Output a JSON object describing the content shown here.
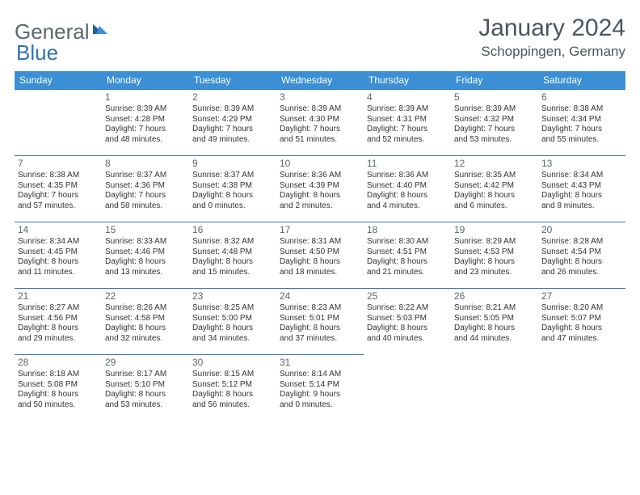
{
  "header": {
    "logo_word1": "General",
    "logo_word2": "Blue",
    "month_title": "January 2024",
    "location": "Schoppingen, Germany"
  },
  "colors": {
    "header_bg": "#3b8fd4",
    "row_border": "#2f73b5",
    "text": "#333333",
    "muted": "#5a6770"
  },
  "day_headers": [
    "Sunday",
    "Monday",
    "Tuesday",
    "Wednesday",
    "Thursday",
    "Friday",
    "Saturday"
  ],
  "weeks": [
    [
      null,
      {
        "n": "1",
        "sr": "Sunrise: 8:39 AM",
        "ss": "Sunset: 4:28 PM",
        "d1": "Daylight: 7 hours",
        "d2": "and 48 minutes."
      },
      {
        "n": "2",
        "sr": "Sunrise: 8:39 AM",
        "ss": "Sunset: 4:29 PM",
        "d1": "Daylight: 7 hours",
        "d2": "and 49 minutes."
      },
      {
        "n": "3",
        "sr": "Sunrise: 8:39 AM",
        "ss": "Sunset: 4:30 PM",
        "d1": "Daylight: 7 hours",
        "d2": "and 51 minutes."
      },
      {
        "n": "4",
        "sr": "Sunrise: 8:39 AM",
        "ss": "Sunset: 4:31 PM",
        "d1": "Daylight: 7 hours",
        "d2": "and 52 minutes."
      },
      {
        "n": "5",
        "sr": "Sunrise: 8:39 AM",
        "ss": "Sunset: 4:32 PM",
        "d1": "Daylight: 7 hours",
        "d2": "and 53 minutes."
      },
      {
        "n": "6",
        "sr": "Sunrise: 8:38 AM",
        "ss": "Sunset: 4:34 PM",
        "d1": "Daylight: 7 hours",
        "d2": "and 55 minutes."
      }
    ],
    [
      {
        "n": "7",
        "sr": "Sunrise: 8:38 AM",
        "ss": "Sunset: 4:35 PM",
        "d1": "Daylight: 7 hours",
        "d2": "and 57 minutes."
      },
      {
        "n": "8",
        "sr": "Sunrise: 8:37 AM",
        "ss": "Sunset: 4:36 PM",
        "d1": "Daylight: 7 hours",
        "d2": "and 58 minutes."
      },
      {
        "n": "9",
        "sr": "Sunrise: 8:37 AM",
        "ss": "Sunset: 4:38 PM",
        "d1": "Daylight: 8 hours",
        "d2": "and 0 minutes."
      },
      {
        "n": "10",
        "sr": "Sunrise: 8:36 AM",
        "ss": "Sunset: 4:39 PM",
        "d1": "Daylight: 8 hours",
        "d2": "and 2 minutes."
      },
      {
        "n": "11",
        "sr": "Sunrise: 8:36 AM",
        "ss": "Sunset: 4:40 PM",
        "d1": "Daylight: 8 hours",
        "d2": "and 4 minutes."
      },
      {
        "n": "12",
        "sr": "Sunrise: 8:35 AM",
        "ss": "Sunset: 4:42 PM",
        "d1": "Daylight: 8 hours",
        "d2": "and 6 minutes."
      },
      {
        "n": "13",
        "sr": "Sunrise: 8:34 AM",
        "ss": "Sunset: 4:43 PM",
        "d1": "Daylight: 8 hours",
        "d2": "and 8 minutes."
      }
    ],
    [
      {
        "n": "14",
        "sr": "Sunrise: 8:34 AM",
        "ss": "Sunset: 4:45 PM",
        "d1": "Daylight: 8 hours",
        "d2": "and 11 minutes."
      },
      {
        "n": "15",
        "sr": "Sunrise: 8:33 AM",
        "ss": "Sunset: 4:46 PM",
        "d1": "Daylight: 8 hours",
        "d2": "and 13 minutes."
      },
      {
        "n": "16",
        "sr": "Sunrise: 8:32 AM",
        "ss": "Sunset: 4:48 PM",
        "d1": "Daylight: 8 hours",
        "d2": "and 15 minutes."
      },
      {
        "n": "17",
        "sr": "Sunrise: 8:31 AM",
        "ss": "Sunset: 4:50 PM",
        "d1": "Daylight: 8 hours",
        "d2": "and 18 minutes."
      },
      {
        "n": "18",
        "sr": "Sunrise: 8:30 AM",
        "ss": "Sunset: 4:51 PM",
        "d1": "Daylight: 8 hours",
        "d2": "and 21 minutes."
      },
      {
        "n": "19",
        "sr": "Sunrise: 8:29 AM",
        "ss": "Sunset: 4:53 PM",
        "d1": "Daylight: 8 hours",
        "d2": "and 23 minutes."
      },
      {
        "n": "20",
        "sr": "Sunrise: 8:28 AM",
        "ss": "Sunset: 4:54 PM",
        "d1": "Daylight: 8 hours",
        "d2": "and 26 minutes."
      }
    ],
    [
      {
        "n": "21",
        "sr": "Sunrise: 8:27 AM",
        "ss": "Sunset: 4:56 PM",
        "d1": "Daylight: 8 hours",
        "d2": "and 29 minutes."
      },
      {
        "n": "22",
        "sr": "Sunrise: 8:26 AM",
        "ss": "Sunset: 4:58 PM",
        "d1": "Daylight: 8 hours",
        "d2": "and 32 minutes."
      },
      {
        "n": "23",
        "sr": "Sunrise: 8:25 AM",
        "ss": "Sunset: 5:00 PM",
        "d1": "Daylight: 8 hours",
        "d2": "and 34 minutes."
      },
      {
        "n": "24",
        "sr": "Sunrise: 8:23 AM",
        "ss": "Sunset: 5:01 PM",
        "d1": "Daylight: 8 hours",
        "d2": "and 37 minutes."
      },
      {
        "n": "25",
        "sr": "Sunrise: 8:22 AM",
        "ss": "Sunset: 5:03 PM",
        "d1": "Daylight: 8 hours",
        "d2": "and 40 minutes."
      },
      {
        "n": "26",
        "sr": "Sunrise: 8:21 AM",
        "ss": "Sunset: 5:05 PM",
        "d1": "Daylight: 8 hours",
        "d2": "and 44 minutes."
      },
      {
        "n": "27",
        "sr": "Sunrise: 8:20 AM",
        "ss": "Sunset: 5:07 PM",
        "d1": "Daylight: 8 hours",
        "d2": "and 47 minutes."
      }
    ],
    [
      {
        "n": "28",
        "sr": "Sunrise: 8:18 AM",
        "ss": "Sunset: 5:08 PM",
        "d1": "Daylight: 8 hours",
        "d2": "and 50 minutes."
      },
      {
        "n": "29",
        "sr": "Sunrise: 8:17 AM",
        "ss": "Sunset: 5:10 PM",
        "d1": "Daylight: 8 hours",
        "d2": "and 53 minutes."
      },
      {
        "n": "30",
        "sr": "Sunrise: 8:15 AM",
        "ss": "Sunset: 5:12 PM",
        "d1": "Daylight: 8 hours",
        "d2": "and 56 minutes."
      },
      {
        "n": "31",
        "sr": "Sunrise: 8:14 AM",
        "ss": "Sunset: 5:14 PM",
        "d1": "Daylight: 9 hours",
        "d2": "and 0 minutes."
      },
      null,
      null,
      null
    ]
  ]
}
